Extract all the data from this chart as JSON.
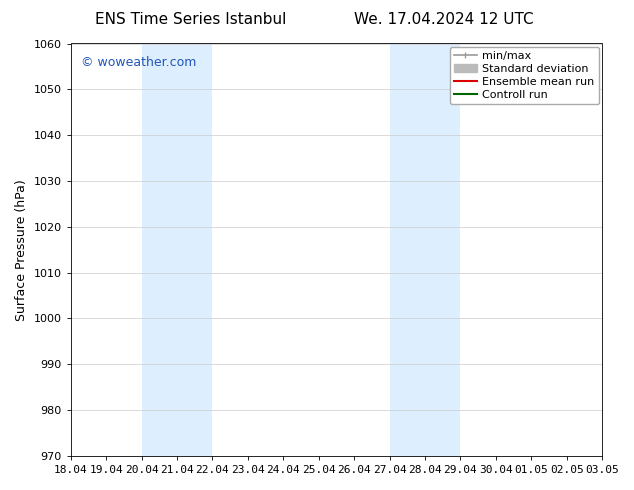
{
  "title_left": "ENS Time Series Istanbul",
  "title_right": "We. 17.04.2024 12 UTC",
  "ylabel": "Surface Pressure (hPa)",
  "ylim": [
    970,
    1060
  ],
  "yticks": [
    970,
    980,
    990,
    1000,
    1010,
    1020,
    1030,
    1040,
    1050,
    1060
  ],
  "xtick_labels": [
    "18.04",
    "19.04",
    "20.04",
    "21.04",
    "22.04",
    "23.04",
    "24.04",
    "25.04",
    "26.04",
    "27.04",
    "28.04",
    "29.04",
    "30.04",
    "01.05",
    "02.05",
    "03.05"
  ],
  "x_values": [
    0,
    1,
    2,
    3,
    4,
    5,
    6,
    7,
    8,
    9,
    10,
    11,
    12,
    13,
    14,
    15
  ],
  "background_color": "#ffffff",
  "plot_bg_color": "#ffffff",
  "shaded_bands": [
    {
      "xstart": 2,
      "xend": 4,
      "color": "#ddeeff"
    },
    {
      "xstart": 9,
      "xend": 11,
      "color": "#ddeeff"
    }
  ],
  "watermark_text": "© woweather.com",
  "watermark_color": "#2255bb",
  "legend_items": [
    {
      "label": "min/max",
      "color": "#999999",
      "lw": 1.2,
      "linestyle": "-",
      "type": "minmax"
    },
    {
      "label": "Standard deviation",
      "color": "#bbbbbb",
      "lw": 5,
      "linestyle": "-",
      "type": "patch"
    },
    {
      "label": "Ensemble mean run",
      "color": "#dd0000",
      "lw": 1.5,
      "linestyle": "-",
      "type": "line"
    },
    {
      "label": "Controll run",
      "color": "#006600",
      "lw": 1.5,
      "linestyle": "-",
      "type": "line"
    }
  ],
  "title_fontsize": 11,
  "tick_fontsize": 8,
  "ylabel_fontsize": 9,
  "watermark_fontsize": 9,
  "legend_fontsize": 8
}
